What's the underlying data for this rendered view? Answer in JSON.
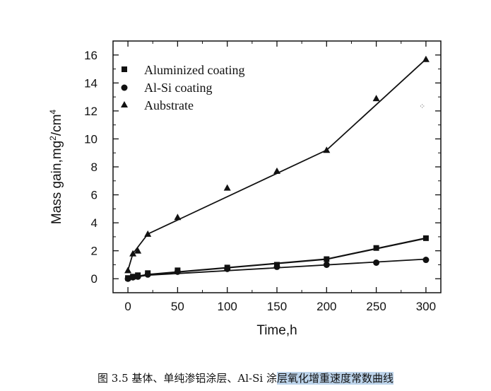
{
  "chart_data": {
    "type": "line",
    "xlabel": "Time,h",
    "ylabel_main": "Mass gain,mg",
    "ylabel_sup1": "2",
    "ylabel_mid": "/cm",
    "ylabel_sup2": "4",
    "xlim": [
      -15,
      315
    ],
    "ylim": [
      -1,
      17
    ],
    "x_ticks": [
      0,
      50,
      100,
      150,
      200,
      250,
      300
    ],
    "y_ticks": [
      0,
      2,
      4,
      6,
      8,
      10,
      12,
      14,
      16
    ],
    "grid": false,
    "legend_position": "top-left",
    "series": [
      {
        "name": "Aluminized coating",
        "marker": "square",
        "x": [
          0,
          5,
          10,
          20,
          50,
          100,
          150,
          200,
          250,
          300
        ],
        "y": [
          0.05,
          0.15,
          0.25,
          0.4,
          0.6,
          0.8,
          1.0,
          1.4,
          2.2,
          2.9
        ]
      },
      {
        "name": "Al-Si coating",
        "marker": "circle",
        "x": [
          0,
          5,
          10,
          20,
          50,
          100,
          150,
          200,
          250,
          300
        ],
        "y": [
          0.0,
          0.1,
          0.15,
          0.3,
          0.5,
          0.7,
          0.85,
          1.0,
          1.15,
          1.35
        ]
      },
      {
        "name": "Aubstrate",
        "marker": "triangle",
        "x": [
          0,
          5,
          10,
          20,
          50,
          100,
          150,
          200,
          250,
          300
        ],
        "y": [
          0.6,
          1.8,
          2.0,
          3.2,
          4.4,
          6.5,
          7.7,
          9.2,
          12.9,
          15.7
        ]
      }
    ],
    "fit_lines": [
      {
        "series": "Aluminized coating",
        "x": [
          0,
          20,
          200,
          300
        ],
        "y": [
          0.05,
          0.3,
          1.4,
          2.9
        ]
      },
      {
        "series": "Al-Si coating",
        "x": [
          0,
          20,
          300
        ],
        "y": [
          0.05,
          0.25,
          1.4
        ]
      },
      {
        "series": "Aubstrate",
        "x": [
          0,
          5,
          20,
          200,
          300
        ],
        "y": [
          0.6,
          1.8,
          3.2,
          9.2,
          15.7
        ]
      }
    ]
  },
  "caption": {
    "prefix": "图 3.5  基体、单纯渗铝涂层、Al-Si 涂",
    "highlighted": "层氧化增重速度常数曲线"
  },
  "colors": {
    "ink": "#111111",
    "caption_highlight": "#bcd3ea"
  }
}
